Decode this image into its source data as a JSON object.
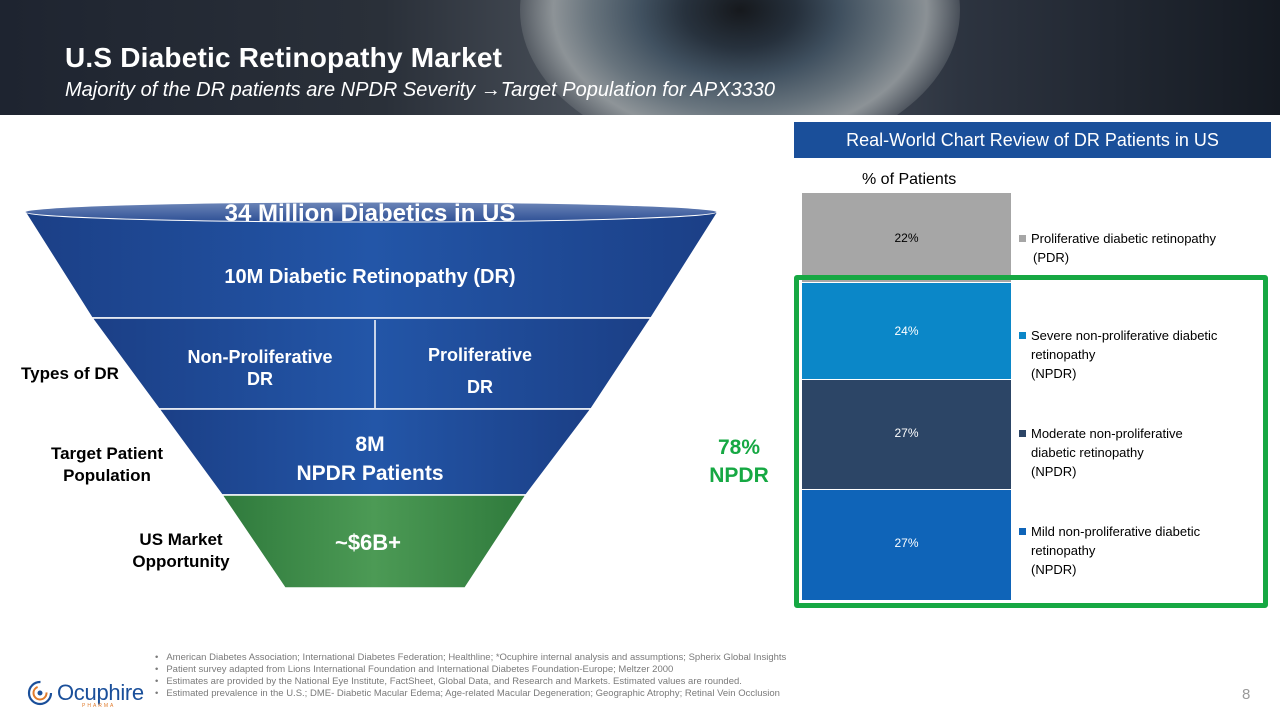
{
  "header": {
    "title": "U.S Diabetic Retinopathy Market",
    "subtitle": "Majority of the DR patients are NPDR Severity →Target Population for APX3330"
  },
  "funnel": {
    "top": "34 Million Diabetics in US",
    "dr": "10M Diabetic Retinopathy (DR)",
    "npdr_line1": "Non-Proliferative",
    "npdr_line2": "DR",
    "pdr_line1": "Proliferative",
    "pdr_line2": "DR",
    "target_line1": "8M",
    "target_line2": "NPDR Patients",
    "market": "~$6B+"
  },
  "side_labels": {
    "types": "Types of DR",
    "target_line1": "Target Patient",
    "target_line2": "Population",
    "market_line1": "US Market",
    "market_line2": "Opportunity"
  },
  "chart_header": "Real-World  Chart Review of DR Patients  in US",
  "chart_data": {
    "type": "bar",
    "stacked": true,
    "title": "Real-World Chart Review of DR Patients in US",
    "ylabel": "% of Patients",
    "categories": [
      "% of Patients"
    ],
    "series": [
      {
        "name": "Mild non-proliferative diabetic retinopathy (NPDR)",
        "label": "27%",
        "value": 27,
        "color": "#0f64b8"
      },
      {
        "name": "Moderate non-proliferative diabetic retinopathy (NPDR)",
        "label": "27%",
        "value": 27,
        "color": "#2c4566"
      },
      {
        "name": "Severe non-proliferative diabetic retinopathy (NPDR)",
        "label": "24%",
        "value": 24,
        "color": "#0b87c8"
      },
      {
        "name": "Proliferative diabetic retinopathy (PDR)",
        "label": "22%",
        "value": 22,
        "color": "#a6a6a6"
      }
    ]
  },
  "legend": {
    "pdr": [
      "Proliferative diabetic retinopathy",
      "(PDR)"
    ],
    "severe": [
      "Severe non-proliferative diabetic",
      "retinopathy",
      "(NPDR)"
    ],
    "moderate": [
      "Moderate non-proliferative",
      "diabetic retinopathy",
      "(NPDR)"
    ],
    "mild": [
      "Mild non-proliferative diabetic",
      "retinopathy",
      "(NPDR)"
    ]
  },
  "npdr_callout": {
    "line1": "78%",
    "line2": "NPDR"
  },
  "footnotes": [
    "American Diabetes Association; International Diabetes Federation; Healthline; *Ocuphire internal analysis and assumptions; Spherix Global Insights",
    "Patient survey adapted from Lions International Foundation and International Diabetes Foundation-Europe; Meltzer 2000",
    "Estimates are provided by the National Eye Institute, FactSheet, Global Data, and Research and Markets. Estimated values are rounded.",
    "Estimated prevalence in the U.S.; DME- Diabetic Macular Edema; Age-related Macular Degeneration; Geographic Atrophy; Retinal Vein Occlusion"
  ],
  "logo": {
    "name": "Ocuphire",
    "sub": "PHARMA"
  },
  "page_number": "8",
  "colors": {
    "funnel_blue": "#1f4c9a",
    "funnel_green": "#3f8d4a",
    "accent_green": "#16a843",
    "header_blue": "#1a4f9a"
  }
}
